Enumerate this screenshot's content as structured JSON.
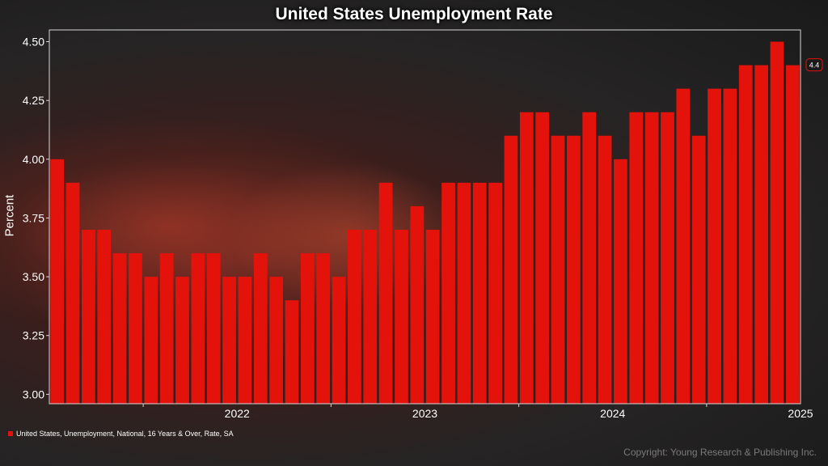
{
  "chart_data": {
    "type": "bar",
    "title": "United States Unemployment Rate",
    "ylabel": "Percent",
    "xlabel": "",
    "ylim": [
      2.96,
      4.55
    ],
    "yticks": [
      "3.00",
      "3.25",
      "3.50",
      "3.75",
      "4.00",
      "4.25",
      "4.50"
    ],
    "ytick_values": [
      3.0,
      3.25,
      3.5,
      3.75,
      4.0,
      4.25,
      4.5
    ],
    "year_labels": [
      "2022",
      "2023",
      "2024",
      "2025"
    ],
    "year_start_index": [
      6,
      18,
      30,
      42
    ],
    "values": [
      4.0,
      3.9,
      3.7,
      3.7,
      3.6,
      3.6,
      3.5,
      3.6,
      3.5,
      3.6,
      3.6,
      3.5,
      3.5,
      3.6,
      3.5,
      3.4,
      3.6,
      3.6,
      3.5,
      3.7,
      3.7,
      3.9,
      3.7,
      3.8,
      3.7,
      3.9,
      3.9,
      3.9,
      3.9,
      4.1,
      4.2,
      4.2,
      4.1,
      4.1,
      4.2,
      4.1,
      4.0,
      4.2,
      4.2,
      4.2,
      4.3,
      4.1,
      4.3,
      4.3,
      4.4,
      4.4,
      4.5,
      4.4
    ],
    "last_value_label": "4.4",
    "series_name": "United States, Unemployment, National, 16 Years & Over, Rate, SA",
    "bar_color": "#e3120b"
  },
  "copyright": "Copyright: Young Research & Publishing Inc."
}
